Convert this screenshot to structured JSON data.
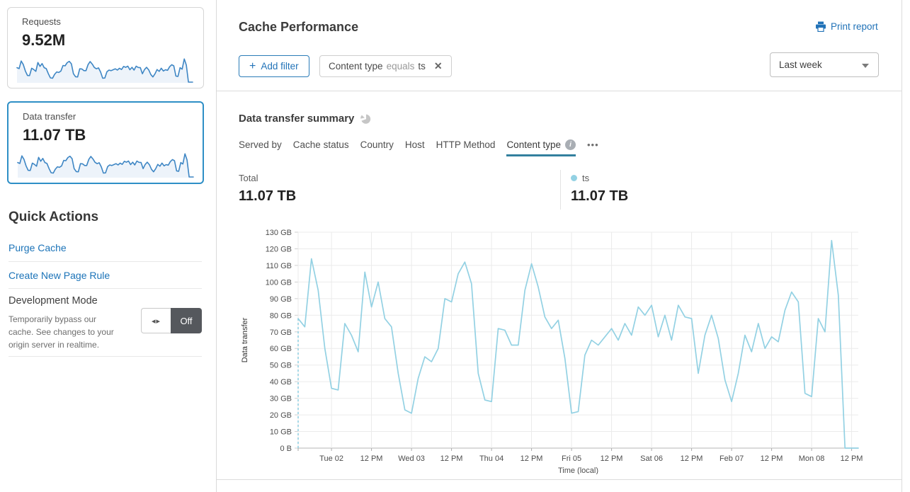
{
  "colors": {
    "accent_blue": "#2273b8",
    "card_accent_border": "#2e8fc6",
    "sparkline_stroke": "#3e86c4",
    "sparkline_fill": "#edf3fa",
    "series_line": "#93d1e3",
    "tab_underline": "#33809e"
  },
  "sidebar": {
    "requests_card": {
      "label": "Requests",
      "value": "9.52M"
    },
    "data_transfer_card": {
      "label": "Data transfer",
      "value": "11.07 TB"
    },
    "quick_actions": {
      "title": "Quick Actions",
      "links": [
        "Purge Cache",
        "Create New Page Rule"
      ]
    },
    "development_mode": {
      "title": "Development Mode",
      "description": "Temporarily bypass our cache. See changes to your origin server in realtime.",
      "toggle_icon": "◂▸",
      "toggle_label": "Off"
    }
  },
  "header": {
    "title": "Cache Performance",
    "print_label": "Print report",
    "time_range": "Last week"
  },
  "filters": {
    "add_icon": "+",
    "add_label": "Add filter",
    "chip": {
      "field": "Content type",
      "operator": "equals",
      "value": "ts",
      "close_icon": "✕"
    }
  },
  "summary": {
    "title": "Data transfer summary",
    "tabs": [
      {
        "label": "Served by",
        "active": false
      },
      {
        "label": "Cache status",
        "active": false
      },
      {
        "label": "Country",
        "active": false
      },
      {
        "label": "Host",
        "active": false
      },
      {
        "label": "HTTP Method",
        "active": false
      },
      {
        "label": "Content type",
        "active": true,
        "info": true
      }
    ],
    "more_label": "•••",
    "info_icon": "i",
    "total_label": "Total",
    "total_value": "11.07 TB",
    "series_label": "ts",
    "series_value": "11.07 TB"
  },
  "chart_data": {
    "type": "line",
    "title": "Data transfer summary",
    "xlabel": "Time (local)",
    "ylabel": "Data transfer",
    "ylim": [
      0,
      130
    ],
    "y_tick_step_gb": 10,
    "y_ticks": [
      "0 B",
      "10 GB",
      "20 GB",
      "30 GB",
      "40 GB",
      "50 GB",
      "60 GB",
      "70 GB",
      "80 GB",
      "90 GB",
      "100 GB",
      "110 GB",
      "120 GB",
      "130 GB"
    ],
    "x_ticks": [
      "Tue 02",
      "12 PM",
      "Wed 03",
      "12 PM",
      "Thu 04",
      "12 PM",
      "Fri 05",
      "12 PM",
      "Sat 06",
      "12 PM",
      "Feb 07",
      "12 PM",
      "Mon 08",
      "12 PM"
    ],
    "x_tick_indices": [
      5,
      11,
      17,
      23,
      29,
      35,
      41,
      47,
      53,
      59,
      65,
      71,
      77,
      83
    ],
    "x_interval_hours": 2,
    "grid": true,
    "start_dashed": true,
    "series": [
      {
        "name": "ts",
        "unit": "GB",
        "total": "11.07 TB",
        "values_gb": [
          78,
          73,
          114,
          95,
          60,
          36,
          35,
          75,
          68,
          58,
          106,
          85,
          100,
          78,
          73,
          45,
          23,
          21,
          42,
          55,
          52,
          60,
          90,
          88,
          105,
          112,
          99,
          45,
          29,
          28,
          72,
          71,
          62,
          62,
          95,
          111,
          97,
          79,
          72,
          77,
          54,
          21,
          22,
          56,
          65,
          62,
          67,
          72,
          65,
          75,
          68,
          85,
          80,
          86,
          67,
          80,
          65,
          86,
          79,
          78,
          45,
          68,
          80,
          66,
          41,
          28,
          45,
          68,
          58,
          75,
          60,
          67,
          64,
          83,
          94,
          88,
          33,
          31,
          78,
          70,
          125,
          92,
          0,
          0,
          0
        ]
      }
    ]
  }
}
